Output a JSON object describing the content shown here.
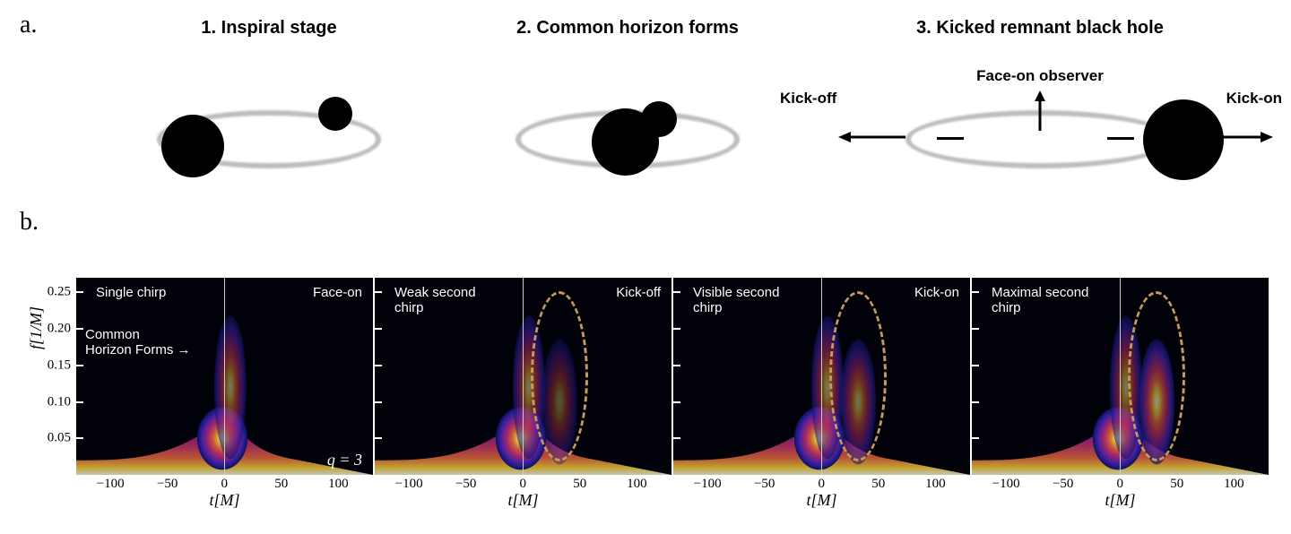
{
  "labels": {
    "panel_a": "a.",
    "panel_b": "b."
  },
  "stages": [
    {
      "title": "1. Inspiral stage"
    },
    {
      "title": "2. Common horizon forms"
    },
    {
      "title": "3. Kicked remnant  black hole"
    }
  ],
  "stage3_annotations": {
    "kick_off": "Kick-off",
    "face_on": "Face-on observer",
    "kick_on": "Kick-on"
  },
  "spectrogram": {
    "type": "spectrogram",
    "xlim": [
      -130,
      130
    ],
    "ylim": [
      0,
      0.27
    ],
    "xticks": [
      -100,
      -50,
      0,
      50,
      100
    ],
    "yticks": [
      0.05,
      0.1,
      0.15,
      0.2,
      0.25
    ],
    "yaxis_label": "f[1/M]",
    "xaxis_label": "t[M]",
    "q_label": "q = 3",
    "background_color": "#000000",
    "colormap": [
      "#000000",
      "#0a043c",
      "#1c1c8c",
      "#5a26b0",
      "#c12f6d",
      "#ee6a3a",
      "#fdd835",
      "#fffde7"
    ],
    "t_zero_line_color": "#cccccc",
    "ellipse_color": "#c89a5a",
    "ellipse_dash": "6 6",
    "panels": [
      {
        "top_left": "Single chirp",
        "top_right": "Face-on",
        "extra_left": "Common\nHorizon Forms →",
        "show_y_labels": true,
        "show_ellipse": false,
        "second_chirp_strength": 0
      },
      {
        "top_left": "Weak second\nchirp",
        "top_right": "Kick-off",
        "show_y_labels": false,
        "show_ellipse": true,
        "second_chirp_strength": 0.25
      },
      {
        "top_left": "Visible second\nchirp",
        "top_right": "Kick-on",
        "show_y_labels": false,
        "show_ellipse": true,
        "second_chirp_strength": 0.5
      },
      {
        "top_left": "Maximal second\nchirp",
        "top_right": "",
        "show_y_labels": false,
        "show_ellipse": true,
        "second_chirp_strength": 0.8
      }
    ]
  },
  "styling": {
    "font_sans": "Arial",
    "font_serif": "Georgia",
    "title_fontsize": 20,
    "label_fontsize": 15,
    "orbit_color": "#bdbdbd",
    "bh_color": "#000000",
    "arrow_color": "#000000"
  }
}
